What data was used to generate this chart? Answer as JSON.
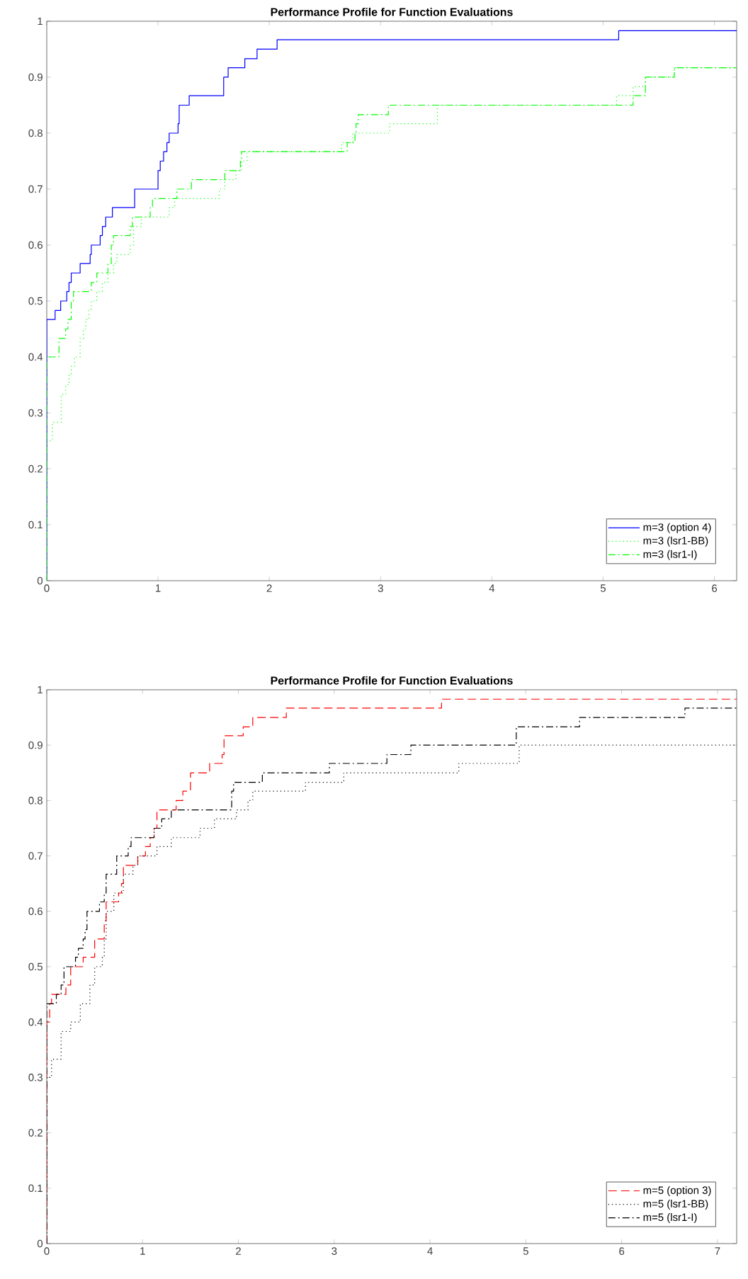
{
  "chart_data": [
    {
      "type": "step",
      "title": "Performance Profile for Function Evaluations",
      "xlim": [
        0,
        6.2
      ],
      "xticks": [
        0,
        1,
        2,
        3,
        4,
        5,
        6
      ],
      "ylim": [
        0,
        1
      ],
      "yticks": [
        0,
        0.1,
        0.2,
        0.3,
        0.4,
        0.5,
        0.6,
        0.7,
        0.8,
        0.9,
        1
      ],
      "legend": "bottom right",
      "grid": false,
      "series": [
        {
          "name": "m=3 (option 4)",
          "color": "#0000ff",
          "line_style": "solid",
          "x": [
            0,
            0,
            0.075,
            0.125,
            0.18,
            0.2,
            0.22,
            0.3,
            0.39,
            0.4,
            0.48,
            0.5,
            0.53,
            0.59,
            0.79,
            1.0,
            1.02,
            1.05,
            1.08,
            1.1,
            1.18,
            1.19,
            1.28,
            1.59,
            1.63,
            1.78,
            1.89,
            2.07,
            5.14,
            6.2
          ],
          "values": [
            0,
            0.467,
            0.483,
            0.5,
            0.517,
            0.533,
            0.55,
            0.567,
            0.583,
            0.6,
            0.617,
            0.633,
            0.65,
            0.667,
            0.7,
            0.733,
            0.75,
            0.767,
            0.783,
            0.8,
            0.817,
            0.85,
            0.867,
            0.9,
            0.917,
            0.933,
            0.95,
            0.967,
            0.983,
            0.983
          ]
        },
        {
          "name": "m=3 (lsr1-BB)",
          "color": "#00ff00",
          "line_style": "dotted",
          "x": [
            0,
            0,
            0.05,
            0.13,
            0.17,
            0.2,
            0.22,
            0.25,
            0.3,
            0.33,
            0.35,
            0.38,
            0.4,
            0.45,
            0.5,
            0.55,
            0.6,
            0.63,
            0.75,
            0.78,
            0.85,
            1.1,
            1.15,
            1.55,
            1.6,
            1.7,
            1.75,
            1.8,
            2.65,
            2.75,
            3.08,
            3.51,
            5.12,
            5.27,
            5.38,
            5.64,
            6.2
          ],
          "values": [
            0,
            0.25,
            0.283,
            0.333,
            0.35,
            0.367,
            0.383,
            0.4,
            0.433,
            0.45,
            0.467,
            0.483,
            0.5,
            0.517,
            0.533,
            0.55,
            0.567,
            0.583,
            0.6,
            0.633,
            0.65,
            0.667,
            0.683,
            0.7,
            0.717,
            0.733,
            0.75,
            0.767,
            0.783,
            0.8,
            0.817,
            0.85,
            0.867,
            0.883,
            0.9,
            0.917,
            0.917
          ]
        },
        {
          "name": "m=3 (lsr1-I)",
          "color": "#00ff00",
          "line_style": "dashdot",
          "x": [
            0,
            0,
            0.11,
            0.17,
            0.19,
            0.22,
            0.24,
            0.4,
            0.45,
            0.55,
            0.58,
            0.6,
            0.75,
            0.77,
            0.93,
            0.95,
            1.17,
            1.3,
            1.6,
            1.74,
            1.75,
            2.7,
            2.77,
            2.78,
            2.8,
            3.07,
            5.27,
            5.38,
            5.64,
            6.2
          ],
          "values": [
            0,
            0.4,
            0.433,
            0.45,
            0.467,
            0.5,
            0.517,
            0.533,
            0.55,
            0.567,
            0.6,
            0.617,
            0.633,
            0.65,
            0.667,
            0.683,
            0.7,
            0.717,
            0.733,
            0.75,
            0.767,
            0.783,
            0.8,
            0.817,
            0.833,
            0.85,
            0.867,
            0.9,
            0.917,
            0.917
          ]
        }
      ]
    },
    {
      "type": "step",
      "title": "Performance Profile for Function Evaluations",
      "xlim": [
        0,
        7.2
      ],
      "xticks": [
        0,
        1,
        2,
        3,
        4,
        5,
        6,
        7
      ],
      "ylim": [
        0,
        1
      ],
      "yticks": [
        0,
        0.1,
        0.2,
        0.3,
        0.4,
        0.5,
        0.6,
        0.7,
        0.8,
        0.9,
        1
      ],
      "legend": "bottom right",
      "grid": false,
      "series": [
        {
          "name": "m=5 (option 3)",
          "color": "#ff0000",
          "line_style": "dashed",
          "x": [
            0,
            0,
            0.03,
            0.05,
            0.2,
            0.25,
            0.38,
            0.5,
            0.6,
            0.62,
            0.75,
            0.78,
            0.8,
            0.95,
            1.03,
            1.08,
            1.12,
            1.15,
            1.35,
            1.42,
            1.5,
            1.7,
            1.83,
            1.85,
            2.05,
            2.15,
            2.5,
            4.12,
            7.2
          ],
          "values": [
            0,
            0.4,
            0.433,
            0.45,
            0.467,
            0.5,
            0.517,
            0.55,
            0.583,
            0.617,
            0.633,
            0.65,
            0.683,
            0.7,
            0.717,
            0.733,
            0.75,
            0.783,
            0.8,
            0.817,
            0.85,
            0.867,
            0.883,
            0.917,
            0.933,
            0.95,
            0.967,
            0.983,
            0.983
          ]
        },
        {
          "name": "m=5 (lsr1-BB)",
          "color": "#000000",
          "line_style": "dotted",
          "x": [
            0,
            0,
            0.05,
            0.15,
            0.25,
            0.35,
            0.45,
            0.5,
            0.58,
            0.6,
            0.62,
            0.7,
            0.8,
            0.9,
            0.95,
            1.15,
            1.3,
            1.6,
            1.75,
            1.98,
            2.1,
            2.15,
            2.7,
            3.1,
            4.3,
            4.93,
            7.2
          ],
          "values": [
            0,
            0.3,
            0.333,
            0.383,
            0.4,
            0.433,
            0.467,
            0.5,
            0.517,
            0.55,
            0.6,
            0.633,
            0.667,
            0.683,
            0.7,
            0.717,
            0.733,
            0.75,
            0.767,
            0.783,
            0.8,
            0.817,
            0.833,
            0.85,
            0.867,
            0.9,
            0.9
          ]
        },
        {
          "name": "m=5 (lsr1-I)",
          "color": "#000000",
          "line_style": "dashdot",
          "x": [
            0,
            0,
            0.1,
            0.15,
            0.18,
            0.3,
            0.33,
            0.38,
            0.4,
            0.42,
            0.55,
            0.6,
            0.62,
            0.73,
            0.85,
            0.88,
            1.12,
            1.2,
            1.3,
            1.93,
            1.95,
            2.25,
            2.95,
            3.55,
            3.8,
            4.9,
            5.56,
            6.66,
            7.2
          ],
          "values": [
            0,
            0.433,
            0.45,
            0.467,
            0.5,
            0.517,
            0.533,
            0.55,
            0.567,
            0.6,
            0.617,
            0.633,
            0.667,
            0.7,
            0.717,
            0.733,
            0.75,
            0.767,
            0.783,
            0.817,
            0.833,
            0.85,
            0.867,
            0.883,
            0.9,
            0.933,
            0.95,
            0.967,
            0.967
          ]
        }
      ]
    }
  ]
}
